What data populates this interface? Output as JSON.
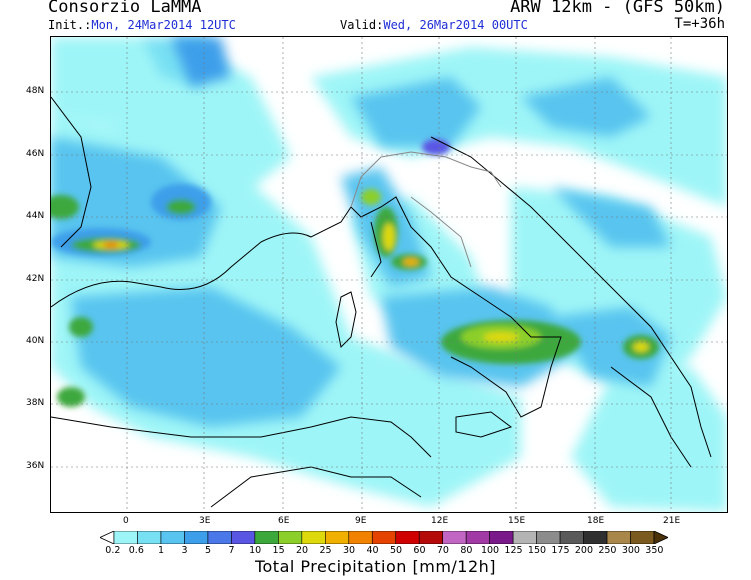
{
  "header": {
    "title": "Consorzio LaMMA",
    "model": "ARW 12km - (GFS 50km)",
    "init_label": "Init.:",
    "init_value": "Mon, 24Mar2014 12UTC",
    "valid_label": "Valid:",
    "valid_value": "Wed, 26Mar2014 00UTC",
    "lead": "T=+36h"
  },
  "map": {
    "lat_labels": [
      "48N",
      "46N",
      "44N",
      "42N",
      "40N",
      "38N",
      "36N"
    ],
    "lon_labels": [
      "0",
      "3E",
      "6E",
      "9E",
      "12E",
      "15E",
      "18E",
      "21E"
    ],
    "field": "Total Precipitation"
  },
  "colorbar": {
    "levels": [
      "0.2",
      "0.6",
      "1",
      "3",
      "5",
      "7",
      "10",
      "15",
      "20",
      "25",
      "30",
      "40",
      "50",
      "60",
      "70",
      "80",
      "100",
      "125",
      "150",
      "175",
      "200",
      "250",
      "300",
      "350"
    ],
    "colors": [
      "#9ef5f7",
      "#78e0f3",
      "#58c4ef",
      "#3d9fea",
      "#4a78e8",
      "#5a56e4",
      "#3ca83c",
      "#8ccf2a",
      "#ddd90c",
      "#f0b000",
      "#f08200",
      "#e54400",
      "#d10000",
      "#b40a0a",
      "#c266c4",
      "#a23aa6",
      "#7a1a8a",
      "#b4b4b4",
      "#8c8c8c",
      "#5a5a5a",
      "#303030",
      "#a9864a",
      "#7a5a1e",
      "#4c320a"
    ],
    "title": "Total Precipitation [mm/12h]"
  }
}
